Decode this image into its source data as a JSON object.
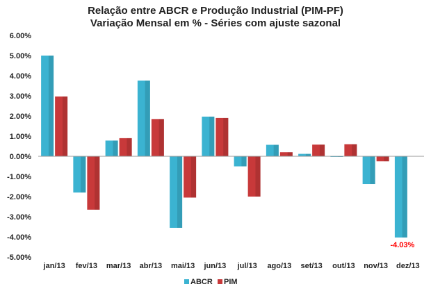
{
  "chart_data": {
    "type": "bar",
    "title": "Relação entre ABCR e Produção Industrial (PIM-PF)",
    "subtitle": "Variação Mensal em % - Séries com ajuste sazonal",
    "categories": [
      "jan/13",
      "fev/13",
      "mar/13",
      "abr/13",
      "mai/13",
      "jun/13",
      "jul/13",
      "ago/13",
      "set/13",
      "out/13",
      "nov/13",
      "dez/13"
    ],
    "series": [
      {
        "name": "ABCR",
        "color": "#3bb3d1",
        "values": [
          5.0,
          -1.8,
          0.78,
          3.76,
          -3.55,
          1.97,
          -0.5,
          0.57,
          0.12,
          -0.03,
          -1.38,
          -4.03
        ]
      },
      {
        "name": "PIM",
        "color": "#c8393a",
        "values": [
          2.97,
          -2.65,
          0.9,
          1.85,
          -2.05,
          1.9,
          -2.0,
          0.2,
          0.58,
          0.6,
          -0.25,
          null
        ]
      }
    ],
    "ylim": [
      -5.0,
      6.0
    ],
    "yticks": [
      "6.00%",
      "5.00%",
      "4.00%",
      "3.00%",
      "2.00%",
      "1.00%",
      "0.00%",
      "-1.00%",
      "-2.00%",
      "-3.00%",
      "-4.00%",
      "-5.00%"
    ],
    "annotation": {
      "text": "-4.03%",
      "color": "#ff0000"
    },
    "legend": "bottom",
    "grid": false,
    "xlabel": "",
    "ylabel": ""
  }
}
